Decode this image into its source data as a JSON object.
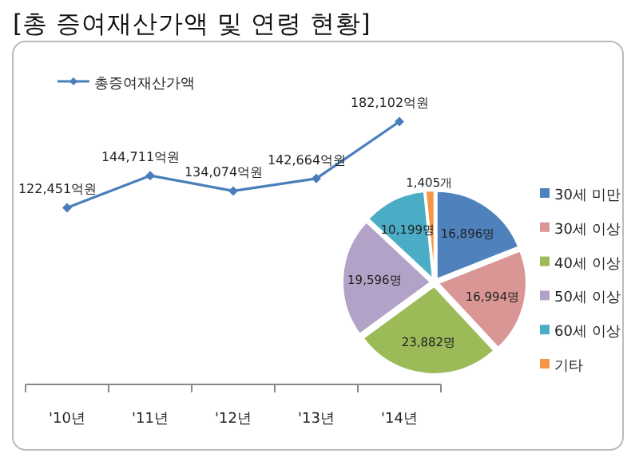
{
  "chart_data": [
    {
      "type": "line",
      "title": "[총 증여재산가액 및 연령 현황]",
      "categories": [
        "'10년",
        "'11년",
        "'12년",
        "'13년",
        "'14년"
      ],
      "series": [
        {
          "name": "총증여재산가액",
          "color": "#4a7ebb",
          "values": [
            122451,
            144711,
            134074,
            142664,
            182102
          ],
          "value_labels": [
            "122,451억원",
            "144,711억원",
            "134,074억원",
            "142,664억원",
            "182,102억원"
          ]
        }
      ],
      "legend": "top left",
      "marker": "diamond",
      "tick_labels": "x"
    },
    {
      "type": "pie",
      "categories": [
        "30세 미만",
        "30세 이상",
        "40세 이상",
        "50세 이상",
        "60세 이상",
        "기타"
      ],
      "values": [
        16896,
        16994,
        23882,
        19596,
        10199,
        1405
      ],
      "colors": [
        "#4f81bd",
        "#d99694",
        "#9bbb59",
        "#b3a2c7",
        "#4bacc6",
        "#f79646"
      ],
      "value_labels": [
        "16,896명",
        "16,994명",
        "23,882명",
        "19,596명",
        "10,199명",
        "1,405개"
      ],
      "legend": "right"
    }
  ]
}
